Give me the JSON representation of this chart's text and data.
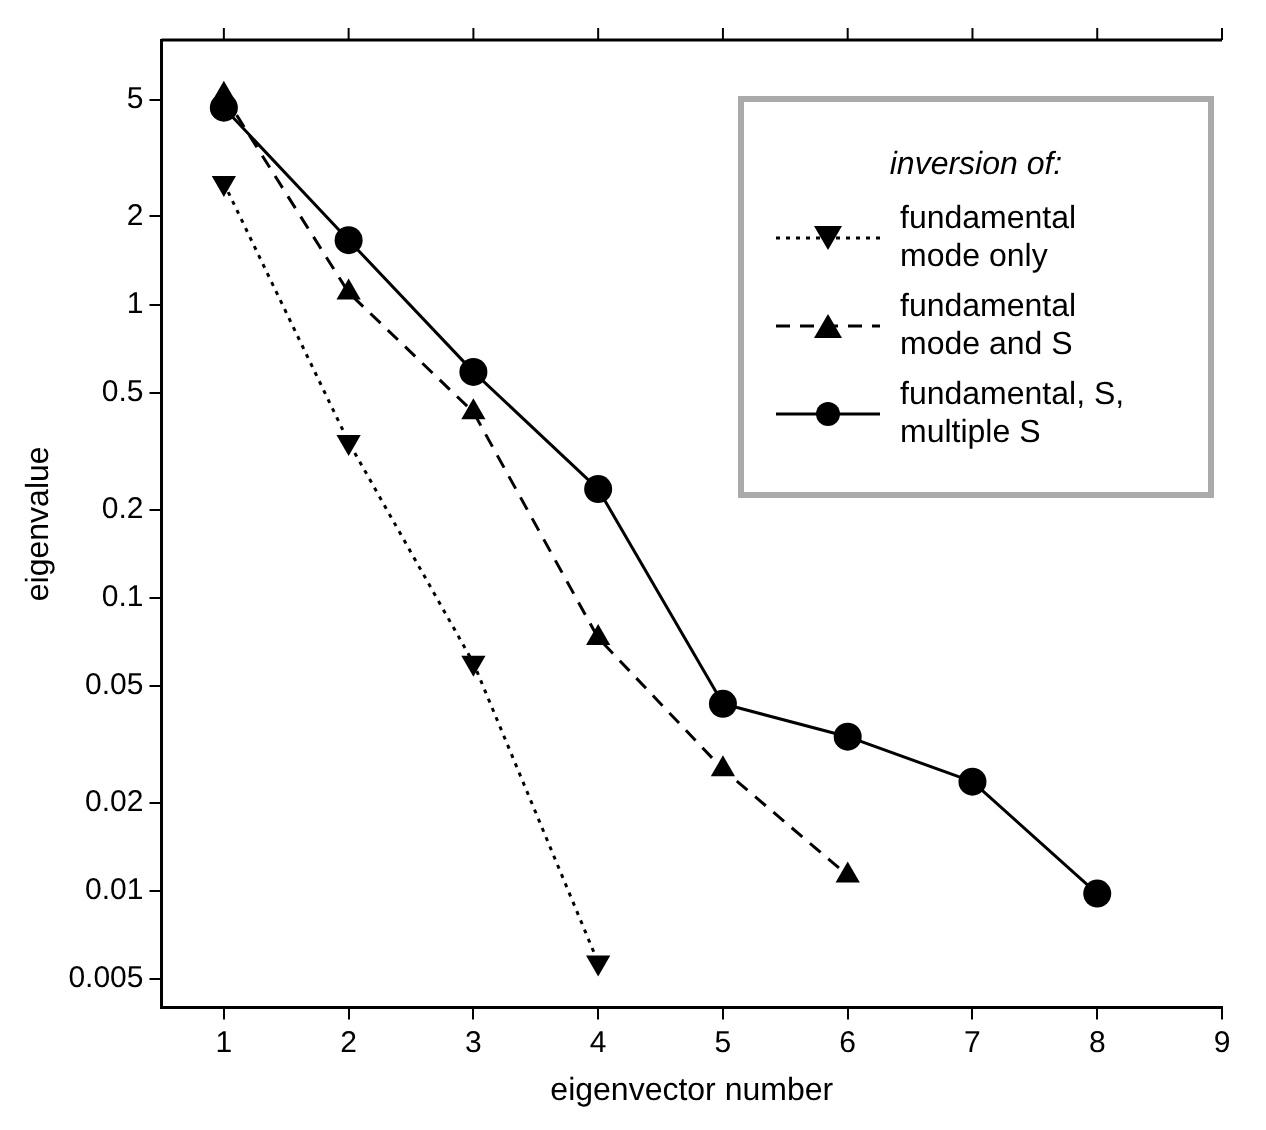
{
  "chart_data": {
    "type": "line",
    "xlabel": "eigenvector number",
    "ylabel": "eigenvalue",
    "legend_title": "inversion of:",
    "x": [
      1,
      2,
      3,
      4,
      5,
      6,
      7,
      8
    ],
    "series": [
      {
        "name": "fundamental mode only",
        "color": "#000000",
        "line_style": "dotted",
        "marker": "triangle-down",
        "values": [
          2.6,
          0.34,
          0.06,
          0.0057,
          null,
          null,
          null,
          null
        ]
      },
      {
        "name": "fundamental mode and S",
        "color": "#000000",
        "line_style": "dashed",
        "marker": "triangle",
        "values": [
          5.2,
          1.1,
          0.43,
          0.073,
          0.026,
          0.0113,
          null,
          null
        ]
      },
      {
        "name": "fundamental, S, multiple S",
        "color": "#000000",
        "line_style": "solid",
        "marker": "circle",
        "values": [
          4.7,
          1.66,
          0.59,
          0.235,
          0.0435,
          0.0336,
          0.0236,
          0.0098
        ]
      }
    ],
    "log": "y",
    "xlim": [
      0.5,
      9
    ],
    "xticks": [
      1,
      2,
      3,
      4,
      5,
      6,
      7,
      8,
      9
    ],
    "ylim": [
      0.004,
      8
    ],
    "yticks": [
      0.005,
      0.01,
      0.02,
      0.05,
      0.1,
      0.2,
      0.5,
      1,
      2,
      5
    ],
    "grid": false,
    "legend": "top right"
  }
}
